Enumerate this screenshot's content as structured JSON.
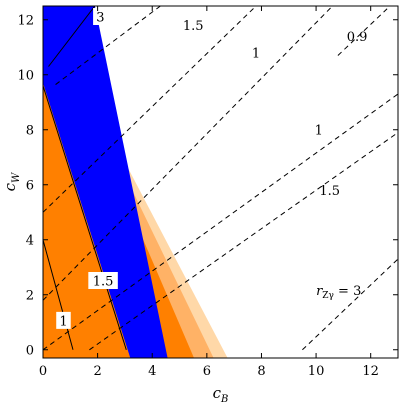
{
  "chart_data": {
    "type": "contour",
    "xlabel": {
      "main": "c",
      "sub": "B"
    },
    "ylabel": {
      "main": "c",
      "sub": "W"
    },
    "xlim": [
      0,
      13
    ],
    "ylim": [
      -0.3,
      12.5
    ],
    "xticks": [
      "0",
      "2",
      "4",
      "6",
      "8",
      "10",
      "12"
    ],
    "xtick_values": [
      0,
      2,
      4,
      6,
      8,
      10,
      12
    ],
    "yticks": [
      "0",
      "2",
      "4",
      "6",
      "8",
      "10",
      "12"
    ],
    "ytick_values": [
      0,
      2,
      4,
      6,
      8,
      10,
      12
    ],
    "colors": {
      "blue": "#0000ff",
      "orange": "#ff8000",
      "light_orange": "#ffb266",
      "pale_orange": "#ffd8a8",
      "line": "#000000",
      "frame": "#000000"
    },
    "bands": [
      {
        "color": "pale_orange",
        "left_edge": [
          [
            0,
            12.5
          ],
          [
            6.6,
            0
          ]
        ]
      },
      {
        "color": "light_orange",
        "left_edge": [
          [
            0,
            12.5
          ],
          [
            6.1,
            0
          ]
        ]
      },
      {
        "color": "orange",
        "left_edge": [
          [
            0,
            12.5
          ],
          [
            5.4,
            0
          ]
        ]
      },
      {
        "color": "blue",
        "left_edge": [
          [
            0,
            9.7
          ],
          [
            3.1,
            0
          ]
        ],
        "right_edge": [
          [
            1.9,
            12.5
          ],
          [
            4.5,
            0
          ]
        ]
      }
    ],
    "solid_lines": [
      {
        "label": "1",
        "points": [
          [
            0,
            4.0
          ],
          [
            1.1,
            0
          ]
        ]
      },
      {
        "label": "1.5",
        "points": [
          [
            0,
            9.6
          ],
          [
            3.05,
            0
          ]
        ]
      },
      {
        "label": "3",
        "points": [
          [
            1.9,
            12.5
          ],
          [
            0.2,
            10.3
          ]
        ]
      }
    ],
    "dashed_lines": [
      {
        "label": "1.5",
        "points": [
          [
            0,
            5.0
          ],
          [
            7.8,
            12.5
          ]
        ]
      },
      {
        "label": "1",
        "points": [
          [
            0,
            1.8
          ],
          [
            10.6,
            12.5
          ]
        ]
      },
      {
        "label": "0.9",
        "points": [
          [
            10.8,
            10.7
          ],
          [
            12.6,
            12.4
          ]
        ]
      },
      {
        "label": "1",
        "points": [
          [
            0,
            0.0
          ],
          [
            13,
            9.3
          ]
        ]
      },
      {
        "label": "1.5",
        "points": [
          [
            1.7,
            0
          ],
          [
            13,
            7.9
          ]
        ]
      },
      {
        "label": "3",
        "points": [
          [
            9.5,
            0
          ],
          [
            13,
            3.3
          ]
        ]
      },
      {
        "label": "",
        "points": [
          [
            4.3,
            12.5
          ],
          [
            0.4,
            9.6
          ]
        ]
      }
    ],
    "contour_labels": [
      {
        "text": "3",
        "x": 2.1,
        "y": 12.1,
        "boxed": true
      },
      {
        "text": "1.5",
        "x": 5.5,
        "y": 11.8,
        "boxed": false
      },
      {
        "text": "1",
        "x": 7.8,
        "y": 10.8,
        "boxed": false
      },
      {
        "text": "0.9",
        "x": 11.5,
        "y": 11.4,
        "boxed": false
      },
      {
        "text": "1",
        "x": 10.1,
        "y": 8.0,
        "boxed": false
      },
      {
        "text": "1.5",
        "x": 10.5,
        "y": 5.8,
        "boxed": false
      },
      {
        "text": "1.5",
        "x": 2.2,
        "y": 2.5,
        "boxed": true
      },
      {
        "text": "1",
        "x": 0.75,
        "y": 1.05,
        "boxed": true
      }
    ],
    "r_label": {
      "main": "r",
      "sub": "Zγ",
      "suffix": " = 3",
      "x": 10.0,
      "y": 2.0
    }
  }
}
